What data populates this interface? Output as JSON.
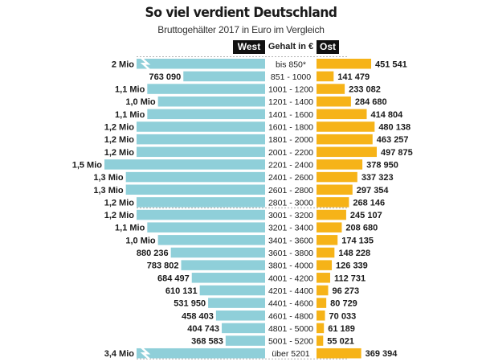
{
  "chart_data": {
    "type": "bar",
    "title": "So viel verdient Deutschland",
    "subtitle": "Bruttogehälter 2017 in Euro im Vergleich",
    "category_header": "Gehalt in €",
    "orientation": "horizontal-butterfly",
    "categories": [
      "bis 850*",
      "851 - 1000",
      "1001 - 1200",
      "1201 - 1400",
      "1401 - 1600",
      "1601 - 1800",
      "1801 - 2000",
      "2001 - 2200",
      "2201 - 2400",
      "2401 - 2600",
      "2601 - 2800",
      "2801 - 3000",
      "3001 - 3200",
      "3201 - 3400",
      "3401 - 3600",
      "3601 - 3800",
      "3801 - 4000",
      "4001 - 4200",
      "4201 - 4400",
      "4401 - 4600",
      "4601 - 4800",
      "4801 - 5000",
      "5001 - 5200",
      "über 5201"
    ],
    "series": [
      {
        "name": "West",
        "color": "#8fcfd9",
        "side": "left",
        "values": [
          2000000,
          763090,
          1100000,
          1000000,
          1100000,
          1200000,
          1200000,
          1200000,
          1500000,
          1300000,
          1300000,
          1200000,
          1200000,
          1100000,
          1000000,
          880236,
          783802,
          684497,
          610131,
          531950,
          458403,
          404743,
          368583,
          3400000
        ],
        "labels": [
          "2 Mio",
          "763 090",
          "1,1 Mio",
          "1,0 Mio",
          "1,1 Mio",
          "1,2 Mio",
          "1,2 Mio",
          "1,2 Mio",
          "1,5 Mio",
          "1,3 Mio",
          "1,3 Mio",
          "1,2 Mio",
          "1,2 Mio",
          "1,1 Mio",
          "1,0 Mio",
          "880 236",
          "783 802",
          "684 497",
          "610 131",
          "531 950",
          "458 403",
          "404 743",
          "368 583",
          "3,4 Mio"
        ],
        "axis_break": [
          true,
          false,
          false,
          false,
          false,
          false,
          false,
          false,
          false,
          false,
          false,
          false,
          false,
          false,
          false,
          false,
          false,
          false,
          false,
          false,
          false,
          false,
          false,
          true
        ]
      },
      {
        "name": "Ost",
        "color": "#f6b318",
        "side": "right",
        "values": [
          451541,
          141479,
          233082,
          284680,
          414804,
          480138,
          463257,
          497875,
          378950,
          337323,
          297354,
          268146,
          245107,
          208680,
          174135,
          148228,
          126339,
          112731,
          96273,
          80729,
          70033,
          61189,
          55021,
          369394
        ],
        "labels": [
          "451 541",
          "141 479",
          "233 082",
          "284 680",
          "414 804",
          "480 138",
          "463 257",
          "497 875",
          "378 950",
          "337 323",
          "297 354",
          "268 146",
          "245 107",
          "208 680",
          "174 135",
          "148 228",
          "126 339",
          "112 731",
          "96 273",
          "80 729",
          "70 033",
          "61 189",
          "55 021",
          "369 394"
        ]
      }
    ],
    "grid": false,
    "legend": "top"
  }
}
